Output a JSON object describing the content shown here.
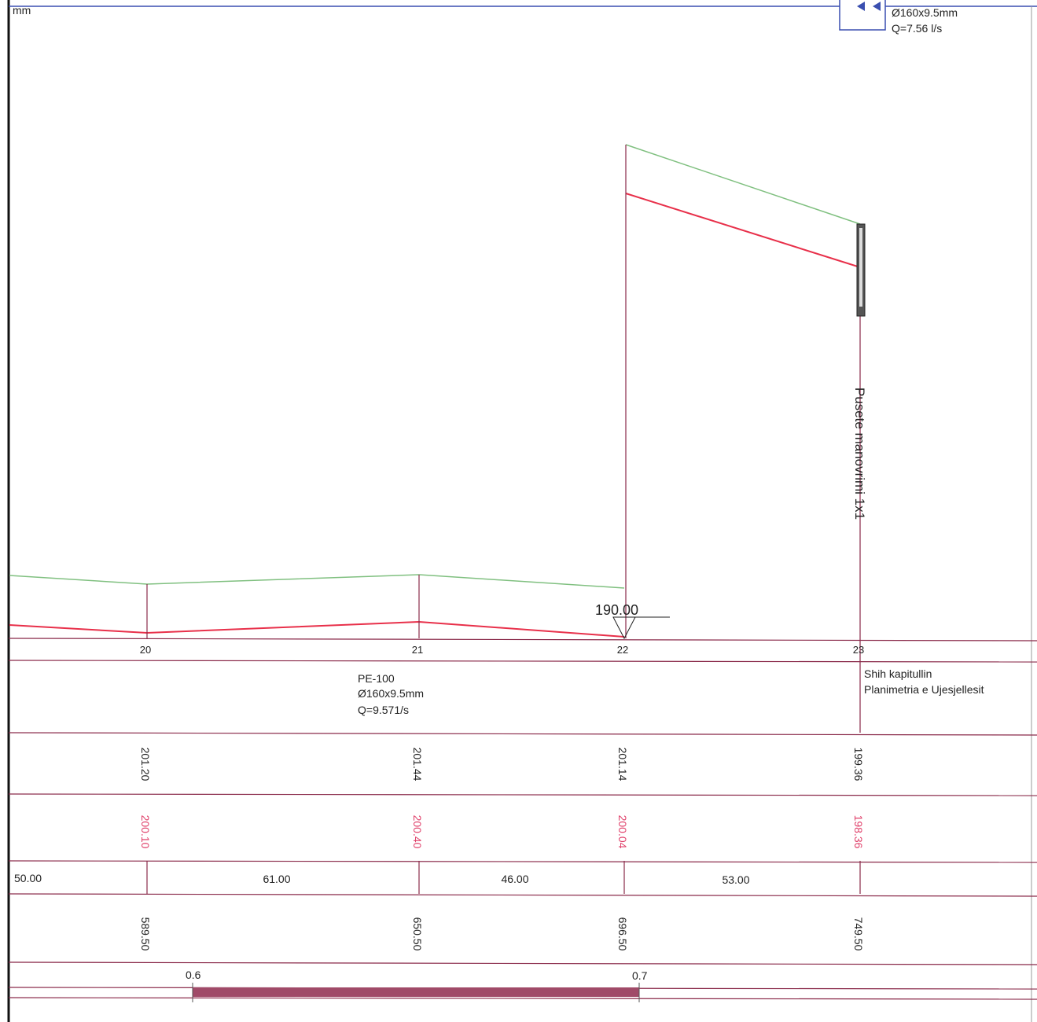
{
  "header": {
    "unit": "mm",
    "valve": {
      "pipe": "Ø160x9.5mm",
      "flow": "Q=7.56 l/s"
    }
  },
  "manhole_label": "Pusete manovrimi 1x1",
  "datum": "190.00",
  "stations": [
    "20",
    "21",
    "22",
    "23"
  ],
  "pipe": {
    "material": "PE-100",
    "size": "Ø160x9.5mm",
    "flow": "Q=9.571/s"
  },
  "note": [
    "Shih kapitullin",
    "Planimetria e Ujesjellesit"
  ],
  "ground_levels": [
    "201.20",
    "201.44",
    "201.14",
    "199.36"
  ],
  "pipe_levels": [
    "200.10",
    "200.40",
    "200.04",
    "198.36"
  ],
  "distances": [
    "50.00",
    "61.00",
    "46.00",
    "53.00"
  ],
  "chainages": [
    "589.50",
    "650.50",
    "696.50",
    "749.50"
  ],
  "scale": [
    "0.6",
    "0.7"
  ]
}
